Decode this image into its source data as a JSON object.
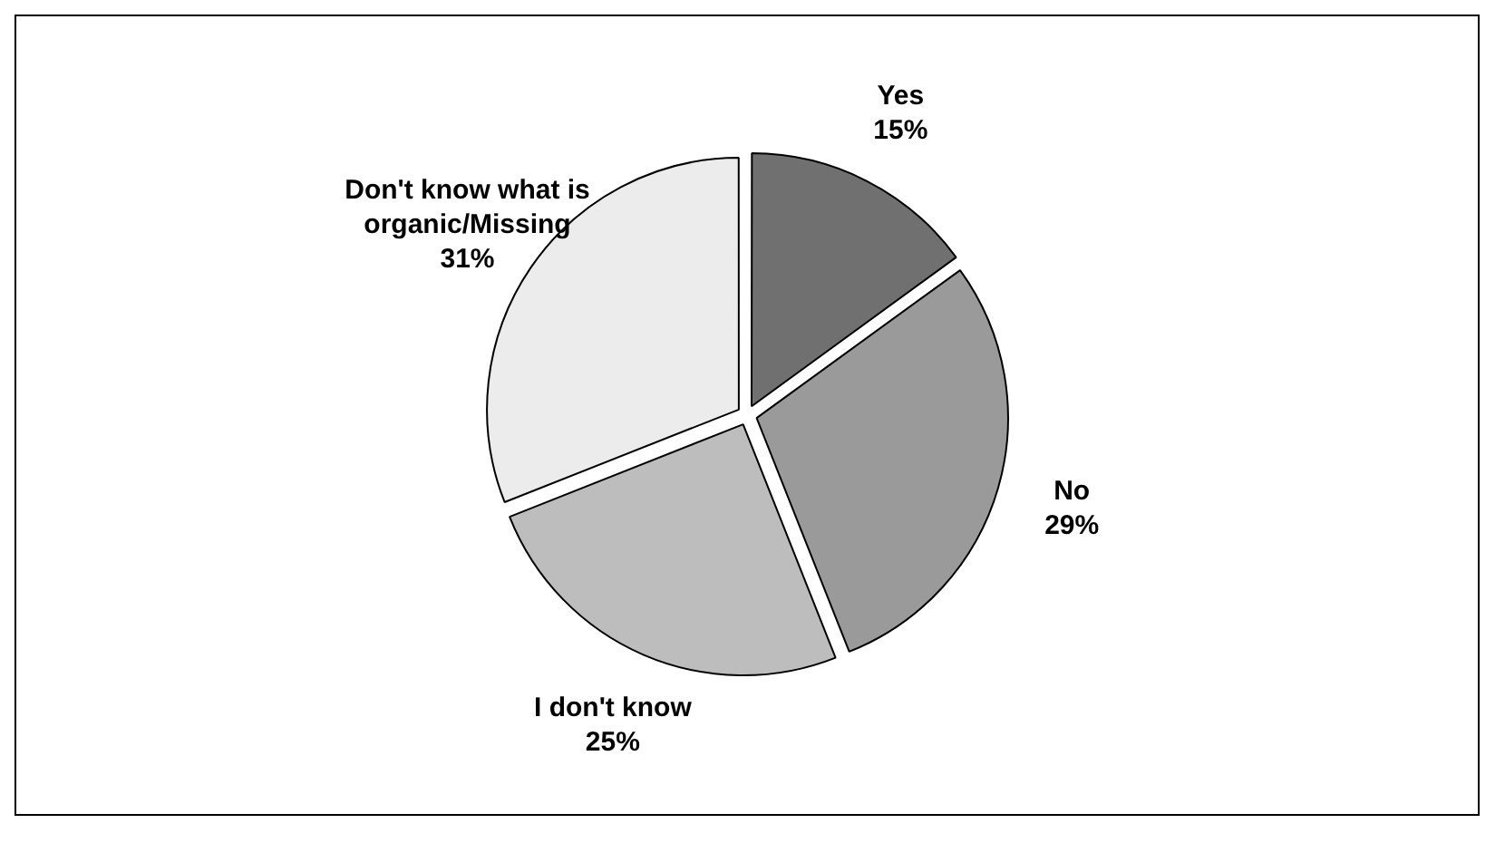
{
  "chart_data": {
    "type": "pie",
    "categories": [
      "Yes",
      "No",
      "I don't know",
      "Don't know what is organic/Missing"
    ],
    "values": [
      15,
      29,
      25,
      31
    ],
    "value_labels": [
      "15%",
      "29%",
      "25%",
      "31%"
    ],
    "colors": [
      "#707070",
      "#9a9a9a",
      "#bdbdbd",
      "#ececec"
    ],
    "legend": false
  }
}
